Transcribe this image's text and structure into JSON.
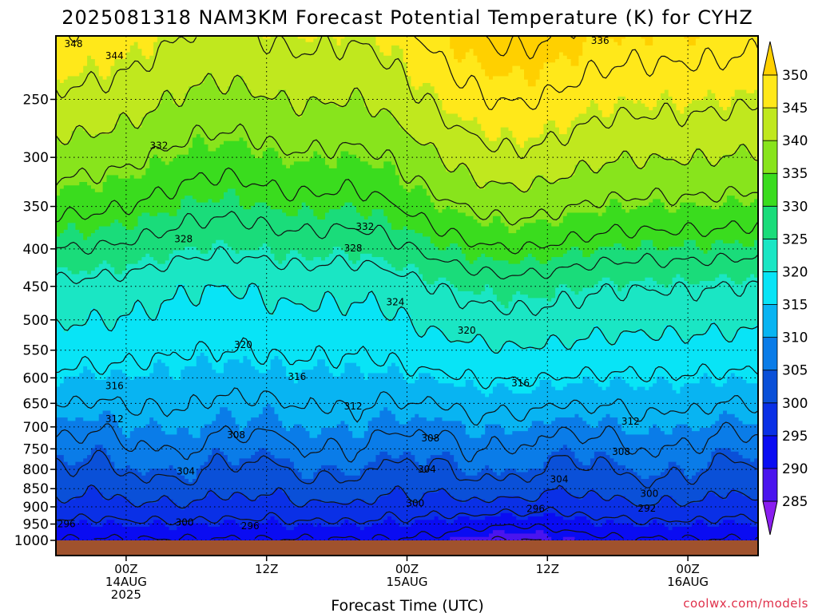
{
  "chart_data": {
    "type": "heatmap",
    "title": "2025081318 NAM3KM Forecast Potential Temperature (K) for CYHZ",
    "xlabel": "Forecast Time (UTC)",
    "credit": "coolwx.com/models",
    "y_axis": {
      "quantity": "pressure (hPa)",
      "ticks": [
        250,
        300,
        350,
        400,
        450,
        500,
        550,
        600,
        650,
        700,
        750,
        800,
        850,
        900,
        950,
        1000
      ],
      "range": [
        200,
        1000
      ],
      "scale": "log",
      "inverted": true
    },
    "x_axis": {
      "range_hours": [
        -6,
        54
      ],
      "ticks": [
        {
          "hour": 0,
          "label": "00Z",
          "date": "14AUG",
          "year": "2025"
        },
        {
          "hour": 12,
          "label": "12Z",
          "date": "",
          "year": ""
        },
        {
          "hour": 24,
          "label": "00Z",
          "date": "15AUG",
          "year": ""
        },
        {
          "hour": 36,
          "label": "12Z",
          "date": "",
          "year": ""
        },
        {
          "hour": 48,
          "label": "00Z",
          "date": "16AUG",
          "year": ""
        }
      ]
    },
    "grid": true,
    "colorbar": {
      "levels": [
        285,
        290,
        295,
        300,
        305,
        310,
        315,
        320,
        325,
        330,
        335,
        340,
        345,
        350
      ],
      "colors": [
        "#8a1ef0",
        "#4a14ee",
        "#0a0cf2",
        "#0a30e6",
        "#0a50d8",
        "#0a7ce8",
        "#08b4f2",
        "#08e4f6",
        "#1ae6c4",
        "#1adc7a",
        "#3adc1e",
        "#88e41c",
        "#c0e81e",
        "#ffe81a",
        "#ffd000"
      ]
    },
    "contour_interval_K": 4,
    "contour_labels": [
      {
        "value": 348,
        "hour": -4.5,
        "p": 210
      },
      {
        "value": 344,
        "hour": -1.0,
        "p": 218
      },
      {
        "value": 336,
        "hour": 40.5,
        "p": 208
      },
      {
        "value": 332,
        "hour": 2.8,
        "p": 289
      },
      {
        "value": 332,
        "hour": 20.4,
        "p": 373
      },
      {
        "value": 328,
        "hour": 4.9,
        "p": 388
      },
      {
        "value": 328,
        "hour": 19.4,
        "p": 399
      },
      {
        "value": 324,
        "hour": 23.0,
        "p": 473
      },
      {
        "value": 320,
        "hour": 10.0,
        "p": 541
      },
      {
        "value": 320,
        "hour": 29.1,
        "p": 517
      },
      {
        "value": 316,
        "hour": -1.0,
        "p": 615
      },
      {
        "value": 316,
        "hour": 14.6,
        "p": 598
      },
      {
        "value": 316,
        "hour": 33.7,
        "p": 610
      },
      {
        "value": 312,
        "hour": -1.0,
        "p": 683
      },
      {
        "value": 312,
        "hour": 19.4,
        "p": 656
      },
      {
        "value": 312,
        "hour": 43.1,
        "p": 688
      },
      {
        "value": 308,
        "hour": 9.4,
        "p": 718
      },
      {
        "value": 308,
        "hour": 26.0,
        "p": 725
      },
      {
        "value": 308,
        "hour": 42.3,
        "p": 757
      },
      {
        "value": 304,
        "hour": 5.1,
        "p": 805
      },
      {
        "value": 304,
        "hour": 25.7,
        "p": 800
      },
      {
        "value": 304,
        "hour": 37.0,
        "p": 825
      },
      {
        "value": 300,
        "hour": 24.7,
        "p": 890
      },
      {
        "value": 300,
        "hour": 5.0,
        "p": 945
      },
      {
        "value": 300,
        "hour": 44.7,
        "p": 863
      },
      {
        "value": 296,
        "hour": -5.1,
        "p": 950
      },
      {
        "value": 296,
        "hour": 10.6,
        "p": 956
      },
      {
        "value": 296,
        "hour": 35.0,
        "p": 906
      },
      {
        "value": 292,
        "hour": 44.5,
        "p": 905
      }
    ],
    "ground_color": "#a0522d"
  }
}
